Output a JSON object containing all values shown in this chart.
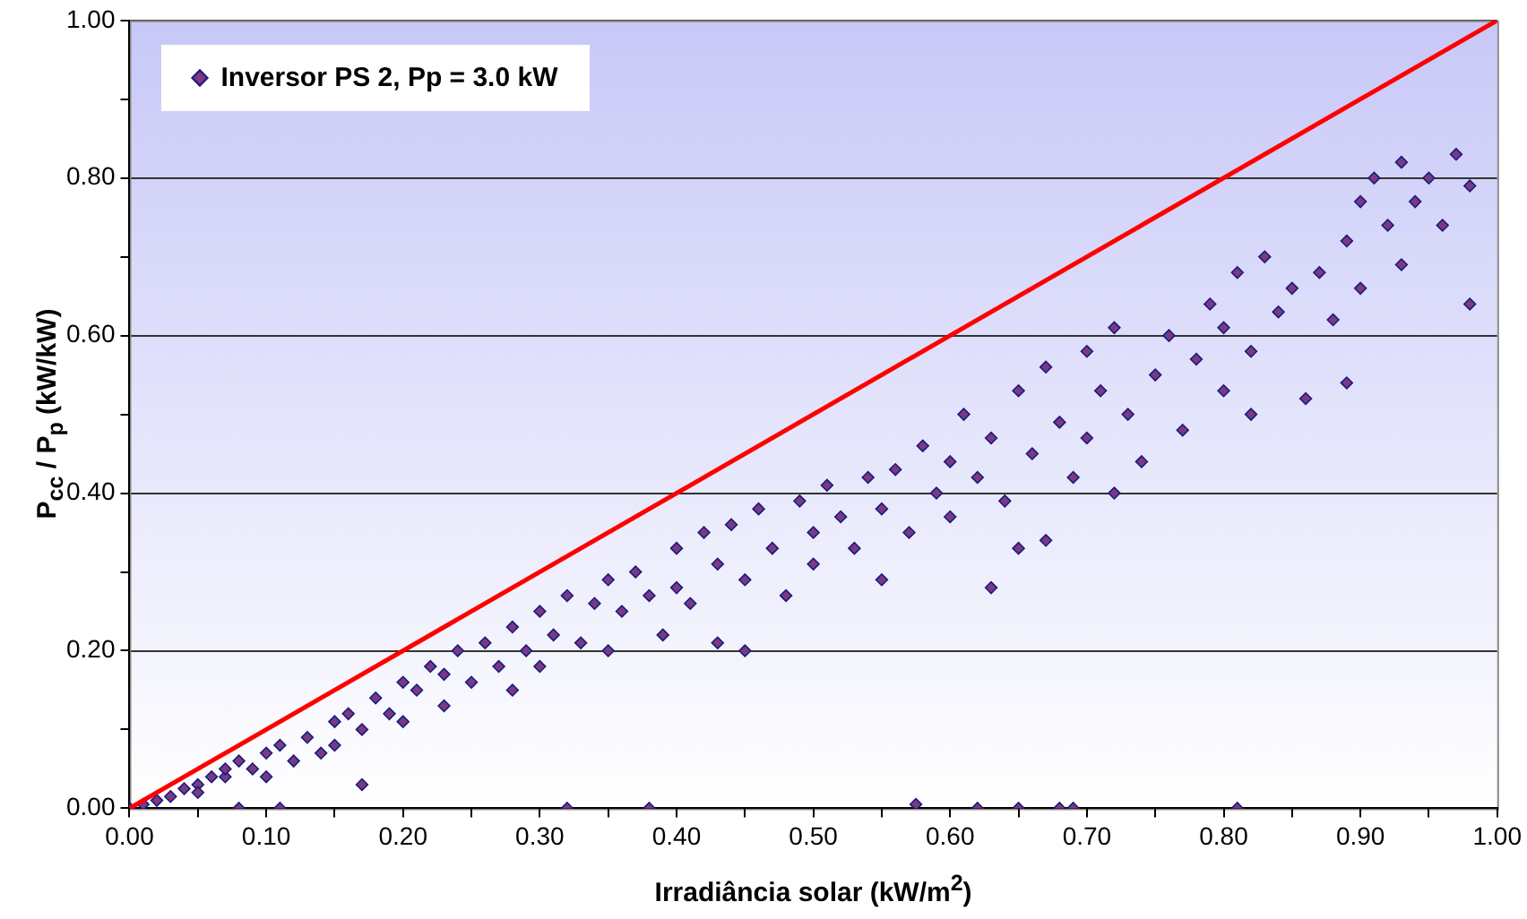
{
  "chart_data": {
    "type": "scatter",
    "xlabel": "Irradiância solar (kW/m$^{2}$)",
    "ylabel": "P$_{cc}$ / P$_{p}$ (kW/kW)",
    "xlim": [
      0,
      1
    ],
    "ylim": [
      0,
      1
    ],
    "xticks": [
      {
        "value": 0,
        "label": "0.00"
      },
      {
        "value": 0.05,
        "label": null
      },
      {
        "value": 0.1,
        "label": "0.10"
      },
      {
        "value": 0.15,
        "label": null
      },
      {
        "value": 0.2,
        "label": "0.20"
      },
      {
        "value": 0.25,
        "label": null
      },
      {
        "value": 0.3,
        "label": "0.30"
      },
      {
        "value": 0.35,
        "label": null
      },
      {
        "value": 0.4,
        "label": "0.40"
      },
      {
        "value": 0.45,
        "label": null
      },
      {
        "value": 0.5,
        "label": "0.50"
      },
      {
        "value": 0.55,
        "label": null
      },
      {
        "value": 0.6,
        "label": "0.60"
      },
      {
        "value": 0.65,
        "label": null
      },
      {
        "value": 0.7,
        "label": "0.70"
      },
      {
        "value": 0.75,
        "label": null
      },
      {
        "value": 0.8,
        "label": "0.80"
      },
      {
        "value": 0.85,
        "label": null
      },
      {
        "value": 0.9,
        "label": "0.90"
      },
      {
        "value": 0.95,
        "label": null
      },
      {
        "value": 1,
        "label": "1.00"
      }
    ],
    "yticks": [
      {
        "value": 0,
        "label": "0.00"
      },
      {
        "value": 0.1,
        "label": null
      },
      {
        "value": 0.2,
        "label": "0.20"
      },
      {
        "value": 0.3,
        "label": null
      },
      {
        "value": 0.4,
        "label": "0.40"
      },
      {
        "value": 0.5,
        "label": null
      },
      {
        "value": 0.6,
        "label": "0.60"
      },
      {
        "value": 0.7,
        "label": null
      },
      {
        "value": 0.8,
        "label": "0.80"
      },
      {
        "value": 0.9,
        "label": null
      },
      {
        "value": 1,
        "label": "1.00"
      }
    ],
    "grid": "y",
    "legend": "top left",
    "marker": "diamond",
    "series": [
      {
        "name": "Inversor PS 2, Pp = 3.0 kW",
        "color": "#7a3a80",
        "x": [
          0,
          0.01,
          0.02,
          0.03,
          0.04,
          0.05,
          0.05,
          0.06,
          0.07,
          0.07,
          0.08,
          0.09,
          0.1,
          0.1,
          0.11,
          0.12,
          0.13,
          0.14,
          0.15,
          0.15,
          0.16,
          0.17,
          0.17,
          0.18,
          0.19,
          0.2,
          0.2,
          0.21,
          0.22,
          0.23,
          0.23,
          0.24,
          0.25,
          0.26,
          0.27,
          0.28,
          0.28,
          0.29,
          0.3,
          0.3,
          0.31,
          0.32,
          0.33,
          0.34,
          0.35,
          0.35,
          0.36,
          0.37,
          0.38,
          0.39,
          0.4,
          0.4,
          0.41,
          0.42,
          0.43,
          0.43,
          0.44,
          0.45,
          0.45,
          0.46,
          0.47,
          0.48,
          0.49,
          0.5,
          0.5,
          0.51,
          0.52,
          0.53,
          0.54,
          0.55,
          0.55,
          0.56,
          0.57,
          0.58,
          0.59,
          0.6,
          0.6,
          0.61,
          0.62,
          0.63,
          0.63,
          0.64,
          0.65,
          0.65,
          0.66,
          0.67,
          0.67,
          0.68,
          0.69,
          0.7,
          0.7,
          0.71,
          0.72,
          0.72,
          0.73,
          0.74,
          0.75,
          0.76,
          0.77,
          0.78,
          0.79,
          0.8,
          0.8,
          0.81,
          0.82,
          0.82,
          0.83,
          0.84,
          0.85,
          0.86,
          0.87,
          0.88,
          0.89,
          0.89,
          0.9,
          0.9,
          0.91,
          0.92,
          0.93,
          0.93,
          0.94,
          0.95,
          0.96,
          0.97,
          0.98,
          0.98,
          0.08,
          0.11,
          0.32,
          0.38,
          0.575,
          0.62,
          0.65,
          0.68,
          0.69,
          0.81
        ],
        "values": [
          0,
          0.005,
          0.01,
          0.015,
          0.025,
          0.03,
          0.02,
          0.04,
          0.04,
          0.05,
          0.06,
          0.05,
          0.07,
          0.04,
          0.08,
          0.06,
          0.09,
          0.07,
          0.11,
          0.08,
          0.12,
          0.03,
          0.1,
          0.14,
          0.12,
          0.16,
          0.11,
          0.15,
          0.18,
          0.13,
          0.17,
          0.2,
          0.16,
          0.21,
          0.18,
          0.23,
          0.15,
          0.2,
          0.25,
          0.18,
          0.22,
          0.27,
          0.21,
          0.26,
          0.29,
          0.2,
          0.25,
          0.3,
          0.27,
          0.22,
          0.33,
          0.28,
          0.26,
          0.35,
          0.21,
          0.31,
          0.36,
          0.29,
          0.2,
          0.38,
          0.33,
          0.27,
          0.39,
          0.35,
          0.31,
          0.41,
          0.37,
          0.33,
          0.42,
          0.29,
          0.38,
          0.43,
          0.35,
          0.46,
          0.4,
          0.44,
          0.37,
          0.5,
          0.42,
          0.28,
          0.47,
          0.39,
          0.53,
          0.33,
          0.45,
          0.34,
          0.56,
          0.49,
          0.42,
          0.58,
          0.47,
          0.53,
          0.4,
          0.61,
          0.5,
          0.44,
          0.55,
          0.6,
          0.48,
          0.57,
          0.64,
          0.53,
          0.61,
          0.68,
          0.5,
          0.58,
          0.7,
          0.63,
          0.66,
          0.52,
          0.68,
          0.62,
          0.54,
          0.72,
          0.77,
          0.66,
          0.8,
          0.74,
          0.69,
          0.82,
          0.77,
          0.8,
          0.74,
          0.83,
          0.64,
          0.79,
          0,
          0,
          0,
          0,
          0.005,
          0,
          0,
          0,
          0,
          0
        ]
      },
      {
        "type": "line",
        "color": "#ff0000",
        "marker": "none",
        "x": [
          0,
          1
        ],
        "values": [
          0,
          1
        ]
      }
    ]
  }
}
